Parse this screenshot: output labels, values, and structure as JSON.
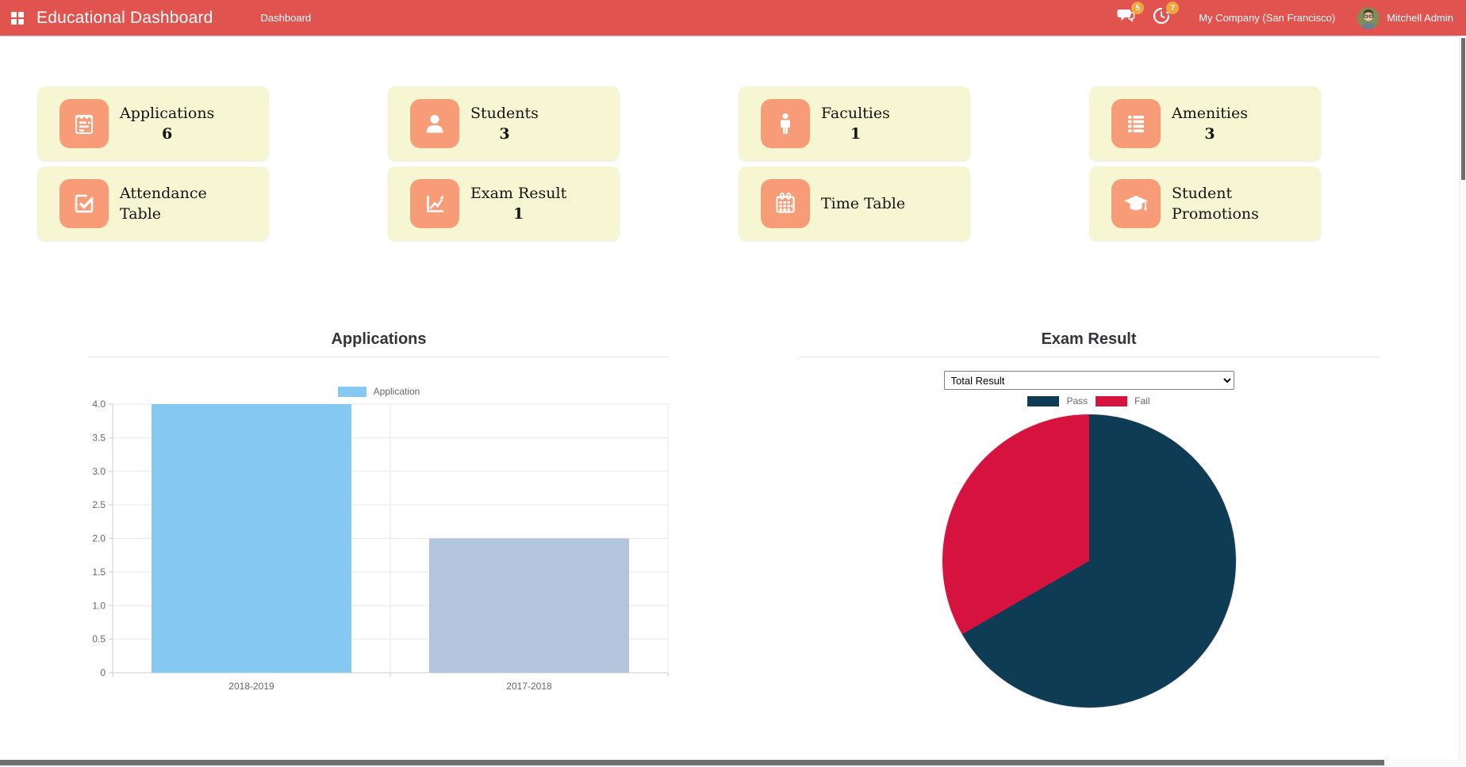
{
  "header": {
    "brand": "Educational Dashboard",
    "menu_dashboard": "Dashboard",
    "messages_badge": "5",
    "activities_badge": "7",
    "company": "My Company (San Francisco)",
    "user": "Mitchell Admin",
    "colors": {
      "bar": "#e0534f",
      "badge": "#f0a63c"
    }
  },
  "cards": [
    {
      "label": "Applications",
      "count": "6",
      "icon": "clipboard-list-icon"
    },
    {
      "label": "Students",
      "count": "3",
      "icon": "student-icon"
    },
    {
      "label": "Faculties",
      "count": "1",
      "icon": "faculty-icon"
    },
    {
      "label": "Amenities",
      "count": "3",
      "icon": "list-icon"
    },
    {
      "label": "Attendance Table",
      "count": "",
      "icon": "attendance-check-icon"
    },
    {
      "label": "Exam Result",
      "count": "1",
      "icon": "exam-line-chart-icon"
    },
    {
      "label": "Time Table",
      "count": "",
      "icon": "calendar-icon"
    },
    {
      "label": "Student Promotions",
      "count": "",
      "icon": "graduation-cap-icon"
    }
  ],
  "card_style": {
    "bg": "#f6f6d3",
    "tile": "#f89c78"
  },
  "chart_data": [
    {
      "type": "bar",
      "title": "Applications",
      "legend": [
        "Application"
      ],
      "legend_position": "top",
      "categories": [
        "2018-2019",
        "2017-2018"
      ],
      "values": [
        4,
        2
      ],
      "bar_colors": [
        "#85c9f2",
        "#b3c4dd"
      ],
      "xlabel": "",
      "ylabel": "",
      "ylim": [
        0,
        4
      ],
      "ytick_step": 0.5,
      "yticks": [
        "0",
        "0.5",
        "1.0",
        "1.5",
        "2.0",
        "2.5",
        "3.0",
        "3.5",
        "4.0"
      ],
      "grid": true
    },
    {
      "type": "pie",
      "title": "Exam Result",
      "filter_selected": "Total Result",
      "labels": [
        "Pass",
        "Fail"
      ],
      "values": [
        2,
        1
      ],
      "colors": [
        "#0e3c55",
        "#d6123f"
      ],
      "legend_position": "top"
    }
  ]
}
